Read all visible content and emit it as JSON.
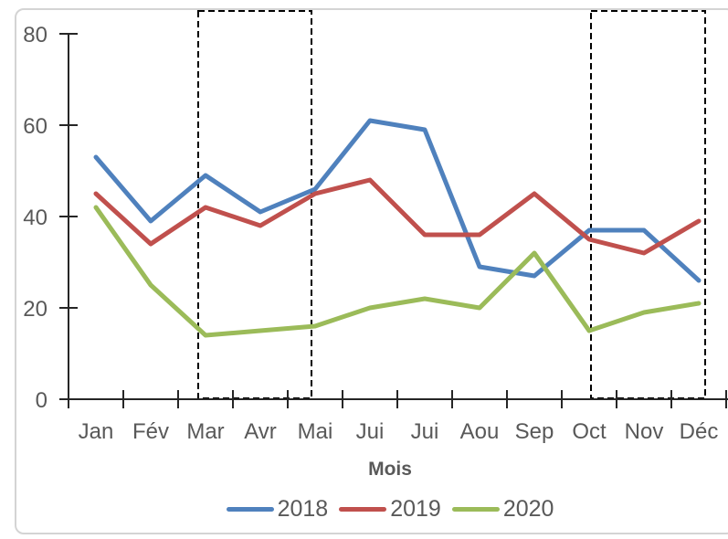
{
  "chart_data": {
    "type": "line",
    "title": "",
    "xlabel": "Mois",
    "ylabel": "",
    "categories": [
      "Jan",
      "Fév",
      "Mar",
      "Avr",
      "Mai",
      "Jui",
      "Jui",
      "Aou",
      "Sep",
      "Oct",
      "Nov",
      "Déc"
    ],
    "y_ticks": [
      0,
      20,
      40,
      60,
      80
    ],
    "ylim": [
      0,
      80
    ],
    "grid": false,
    "legend_position": "bottom",
    "series": [
      {
        "name": "2018",
        "color": "#4F81BD",
        "values": [
          53,
          39,
          49,
          41,
          46,
          61,
          59,
          29,
          27,
          37,
          37,
          26
        ]
      },
      {
        "name": "2019",
        "color": "#C0504D",
        "values": [
          45,
          34,
          42,
          38,
          45,
          48,
          36,
          36,
          45,
          35,
          32,
          39
        ]
      },
      {
        "name": "2020",
        "color": "#9BBB59",
        "values": [
          42,
          25,
          14,
          15,
          16,
          20,
          22,
          20,
          32,
          15,
          19,
          21
        ]
      }
    ],
    "annotations": {
      "highlight_boxes": [
        {
          "from": "Mar",
          "to": "Mai",
          "style": "black dashed rectangle"
        },
        {
          "from": "Oct",
          "to": "Déc",
          "style": "black dashed rectangle"
        }
      ]
    },
    "colors": {
      "text": "#595959",
      "axis": "#262626",
      "highlight_box": "#000000",
      "frame_border": "#d4d4d4"
    }
  }
}
